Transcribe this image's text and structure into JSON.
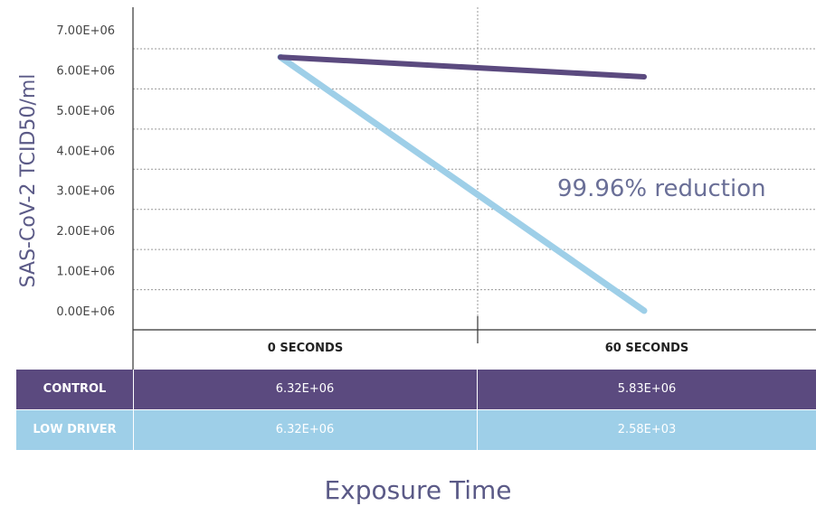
{
  "chart_data": {
    "type": "line",
    "ylabel": "SAS-CoV-2 TCID50/ml",
    "xlabel": "Exposure Time",
    "categories": [
      "0 SECONDS",
      "60 SECONDS"
    ],
    "yticks": [
      "7.00E+06",
      "6.00E+06",
      "5.00E+06",
      "4.00E+06",
      "3.00E+06",
      "2.00E+06",
      "1.00E+06",
      "0.00E+06"
    ],
    "ylim": [
      0,
      7000000
    ],
    "grid": true,
    "series": [
      {
        "name": "CONTROL",
        "values": [
          6320000,
          5830000
        ],
        "labels": [
          "6.32E+06",
          "5.83E+06"
        ],
        "color": "#5b4a7f"
      },
      {
        "name": "LOW DRIVER",
        "values": [
          6320000,
          2580
        ],
        "labels": [
          "6.32E+06",
          "2.58E+03"
        ],
        "color": "#9ecfe8"
      }
    ],
    "annotation": "99.96% reduction"
  },
  "table": {
    "rows": [
      {
        "label": "CONTROL",
        "values": [
          "6.32E+06",
          "5.83E+06"
        ]
      },
      {
        "label": "LOW DRIVER",
        "values": [
          "6.32E+06",
          "2.58E+03"
        ]
      }
    ]
  }
}
